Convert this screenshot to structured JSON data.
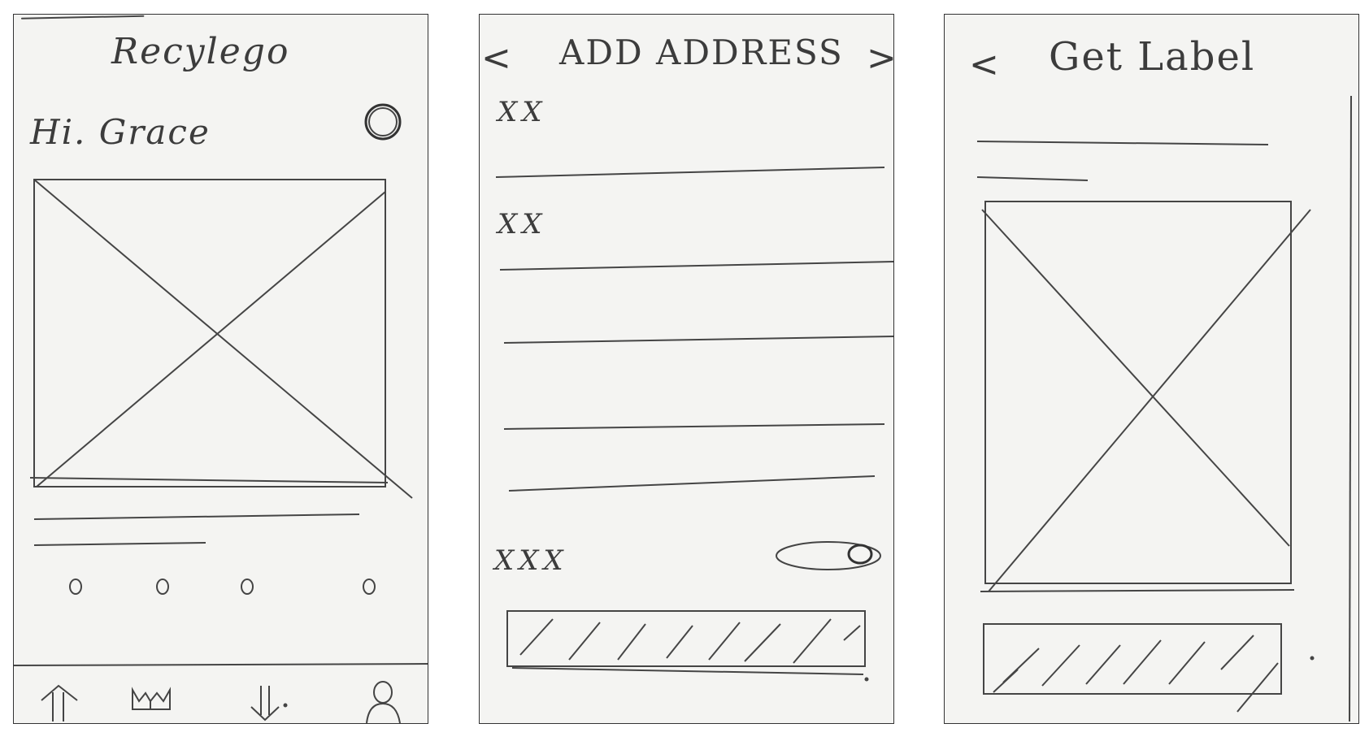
{
  "screens": {
    "home": {
      "title": "Recylego",
      "greeting": "Hi. Grace"
    },
    "add_address": {
      "title": "ADD ADDRESS",
      "back_icon": "<",
      "next_icon": ">",
      "field_1_label": "XX",
      "field_2_label": "XX",
      "toggle_label": "XXX"
    },
    "get_label": {
      "title": "Get Label",
      "back_icon": "<"
    }
  }
}
